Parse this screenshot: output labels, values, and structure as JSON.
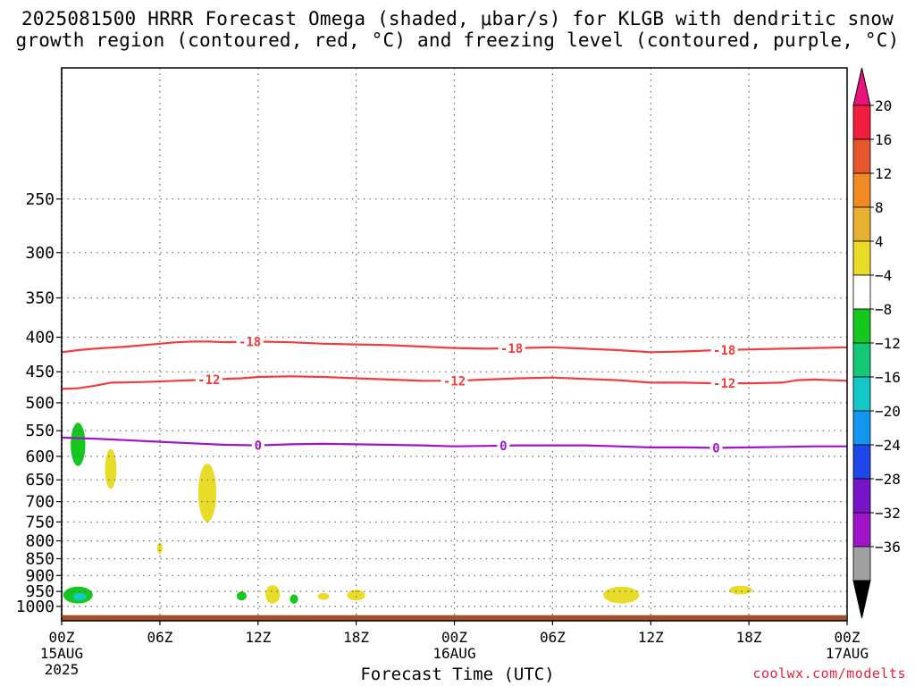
{
  "title": {
    "line1": "2025081500 HRRR Forecast Omega (shaded, μbar/s) for KLGB with dendritic snow",
    "line2": "growth region (contoured, red, °C) and freezing level (contoured, purple, °C)"
  },
  "credit": "coolwx.com/modelts",
  "chart_data": {
    "type": "heatmap",
    "xlabel": "Forecast Time (UTC)",
    "ylabel": "",
    "x_range_hours": [
      0,
      48
    ],
    "y_range_hPa": [
      1050,
      160
    ],
    "y_scale": "log-pressure (inverted)",
    "grid": true,
    "y_ticks": [
      250,
      300,
      350,
      400,
      450,
      500,
      550,
      600,
      650,
      700,
      750,
      800,
      850,
      900,
      950,
      1000
    ],
    "x_ticks": [
      {
        "hour": 0,
        "label": "00Z",
        "sub": "15AUG",
        "sub2": "2025"
      },
      {
        "hour": 6,
        "label": "06Z"
      },
      {
        "hour": 12,
        "label": "12Z"
      },
      {
        "hour": 18,
        "label": "18Z"
      },
      {
        "hour": 24,
        "label": "00Z",
        "sub": "16AUG"
      },
      {
        "hour": 30,
        "label": "06Z"
      },
      {
        "hour": 36,
        "label": "12Z"
      },
      {
        "hour": 42,
        "label": "18Z"
      },
      {
        "hour": 48,
        "label": "00Z",
        "sub": "17AUG"
      }
    ],
    "colorbar": {
      "labels": [
        "20",
        "16",
        "12",
        "8",
        "4",
        "−4",
        "−8",
        "−12",
        "−16",
        "−20",
        "−24",
        "−28",
        "−32",
        "−36"
      ],
      "colors": [
        "#f01e3c",
        "#e8562e",
        "#ef8a25",
        "#e8b030",
        "#e8dc28",
        "#ffffff",
        "#14c81e",
        "#14c878",
        "#14c8c8",
        "#1496f0",
        "#1e46e8",
        "#7814c8",
        "#a014c8",
        "#a0a0a0"
      ],
      "top_arrow_color": "#e8147a",
      "bottom_arrow_color": "#000000"
    },
    "contours": [
      {
        "name": "-18",
        "color": "#f03c3c",
        "points": [
          [
            0,
            421
          ],
          [
            1,
            418
          ],
          [
            2,
            416
          ],
          [
            4,
            413
          ],
          [
            6,
            409
          ],
          [
            7,
            407
          ],
          [
            8,
            406
          ],
          [
            9,
            406
          ],
          [
            10,
            407
          ],
          [
            12,
            406
          ],
          [
            14,
            407
          ],
          [
            16,
            409
          ],
          [
            18,
            410
          ],
          [
            20,
            411
          ],
          [
            22,
            413
          ],
          [
            24,
            415
          ],
          [
            26,
            416
          ],
          [
            28,
            415
          ],
          [
            30,
            414
          ],
          [
            32,
            416
          ],
          [
            34,
            418
          ],
          [
            36,
            421
          ],
          [
            38,
            420
          ],
          [
            40,
            418
          ],
          [
            42,
            417
          ],
          [
            44,
            416
          ],
          [
            46,
            415
          ],
          [
            48,
            414
          ]
        ],
        "labels": [
          {
            "x": 11.5,
            "text": "-18"
          },
          {
            "x": 27.5,
            "text": "-18"
          },
          {
            "x": 40.5,
            "text": "-18"
          }
        ]
      },
      {
        "name": "-12",
        "color": "#f03c3c",
        "points": [
          [
            0,
            477
          ],
          [
            1,
            476
          ],
          [
            2,
            472
          ],
          [
            3,
            467
          ],
          [
            5,
            466
          ],
          [
            7,
            464
          ],
          [
            9,
            462
          ],
          [
            11,
            460
          ],
          [
            12,
            458
          ],
          [
            14,
            457
          ],
          [
            16,
            458
          ],
          [
            18,
            460
          ],
          [
            20,
            462
          ],
          [
            22,
            464
          ],
          [
            24,
            464
          ],
          [
            26,
            462
          ],
          [
            28,
            460
          ],
          [
            30,
            459
          ],
          [
            32,
            461
          ],
          [
            34,
            463
          ],
          [
            36,
            467
          ],
          [
            38,
            467
          ],
          [
            40,
            468
          ],
          [
            42,
            468
          ],
          [
            44,
            467
          ],
          [
            45,
            463
          ],
          [
            46,
            462
          ],
          [
            48,
            464
          ]
        ],
        "labels": [
          {
            "x": 9,
            "text": "-12"
          },
          {
            "x": 24,
            "text": "-12"
          },
          {
            "x": 40.5,
            "text": "-12"
          }
        ]
      },
      {
        "name": "0",
        "color": "#a014c8",
        "points": [
          [
            0,
            563
          ],
          [
            2,
            565
          ],
          [
            4,
            568
          ],
          [
            6,
            571
          ],
          [
            8,
            574
          ],
          [
            10,
            577
          ],
          [
            12,
            578
          ],
          [
            14,
            576
          ],
          [
            16,
            575
          ],
          [
            18,
            576
          ],
          [
            20,
            577
          ],
          [
            22,
            578
          ],
          [
            24,
            580
          ],
          [
            26,
            579
          ],
          [
            28,
            578
          ],
          [
            30,
            578
          ],
          [
            32,
            578
          ],
          [
            34,
            580
          ],
          [
            36,
            582
          ],
          [
            38,
            582
          ],
          [
            40,
            583
          ],
          [
            42,
            582
          ],
          [
            44,
            581
          ],
          [
            46,
            580
          ],
          [
            48,
            580
          ]
        ],
        "labels": [
          {
            "x": 12,
            "text": "0"
          },
          {
            "x": 27,
            "text": "0"
          },
          {
            "x": 40,
            "text": "0"
          }
        ]
      }
    ],
    "omega_blobs": [
      {
        "t": 1.0,
        "p": 575,
        "dt": 0.45,
        "dp_lo": 535,
        "dp_hi": 620,
        "value": -6,
        "color": "#14c81e"
      },
      {
        "t": 3.0,
        "p": 625,
        "dt": 0.35,
        "dp_lo": 585,
        "dp_hi": 670,
        "value": 5,
        "color": "#e8dc28"
      },
      {
        "t": 8.9,
        "p": 690,
        "dt": 0.55,
        "dp_lo": 615,
        "dp_hi": 750,
        "value": 5,
        "color": "#e8dc28"
      },
      {
        "t": 6.0,
        "p": 820,
        "dt": 0.15,
        "dp_lo": 805,
        "dp_hi": 835,
        "value": 5,
        "color": "#e8dc28"
      },
      {
        "t": 1.0,
        "p": 965,
        "dt": 0.9,
        "dp_lo": 935,
        "dp_hi": 990,
        "value": -6,
        "color": "#14c81e"
      },
      {
        "t": 1.1,
        "p": 968,
        "dt": 0.4,
        "dp_lo": 955,
        "dp_hi": 980,
        "value": -11,
        "color": "#14c8c8"
      },
      {
        "t": 11.0,
        "p": 965,
        "dt": 0.3,
        "dp_lo": 950,
        "dp_hi": 980,
        "value": -6,
        "color": "#14c81e"
      },
      {
        "t": 12.9,
        "p": 960,
        "dt": 0.45,
        "dp_lo": 930,
        "dp_hi": 990,
        "value": 5,
        "color": "#e8dc28"
      },
      {
        "t": 14.2,
        "p": 975,
        "dt": 0.25,
        "dp_lo": 960,
        "dp_hi": 990,
        "value": -6,
        "color": "#14c81e"
      },
      {
        "t": 16.0,
        "p": 965,
        "dt": 0.35,
        "dp_lo": 955,
        "dp_hi": 978,
        "value": 5,
        "color": "#e8dc28"
      },
      {
        "t": 18.0,
        "p": 960,
        "dt": 0.55,
        "dp_lo": 945,
        "dp_hi": 980,
        "value": 5,
        "color": "#e8dc28"
      },
      {
        "t": 34.2,
        "p": 962,
        "dt": 1.1,
        "dp_lo": 935,
        "dp_hi": 990,
        "value": 5,
        "color": "#e8dc28"
      },
      {
        "t": 41.5,
        "p": 945,
        "dt": 0.7,
        "dp_lo": 932,
        "dp_hi": 960,
        "value": 5,
        "color": "#e8dc28"
      }
    ],
    "surface": {
      "color": "#a0522d",
      "p_top": 1030
    }
  }
}
